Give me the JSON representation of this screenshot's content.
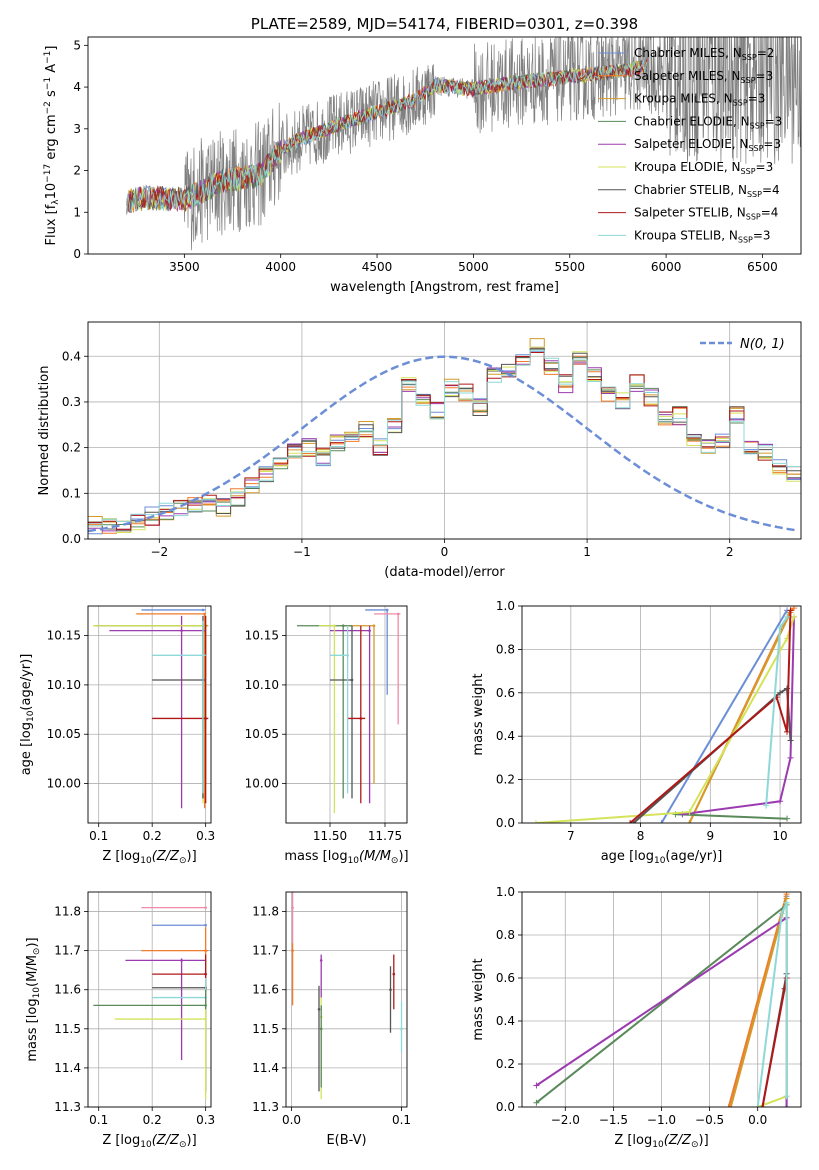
{
  "colors": {
    "chabrier_miles": "#6c8ed6",
    "salpeter_miles": "#f07b2a",
    "kroupa_miles": "#d49a2a",
    "chabrier_elodie": "#5a8a5a",
    "salpeter_elodie": "#9b3bb0",
    "kroupa_elodie": "#d4e35a",
    "chabrier_stelib": "#555555",
    "salpeter_stelib": "#b01818",
    "kroupa_stelib": "#8ed8d8",
    "data": "#808080",
    "normal": "#6c8ed6",
    "pink": "#f08aa8"
  },
  "chart_data": [
    {
      "id": "spectrum",
      "type": "line",
      "title": "PLATE=2589, MJD=54174, FIBERID=0301, z=0.398",
      "xlabel": "wavelength [Angstrom, rest frame]",
      "ylabel": "Flux [f_λ 10^-17 erg cm^-2 s^-1 A^-1]",
      "xlim": [
        3000,
        6700
      ],
      "ylim": [
        0,
        5.2
      ],
      "xticks": [
        "3500",
        "4000",
        "4500",
        "5000",
        "5500",
        "6000",
        "6500"
      ],
      "yticks": [
        "0",
        "1",
        "2",
        "3",
        "4",
        "5"
      ],
      "legend_position": "top-right",
      "legend": [
        "Chabrier MILES, N_SSP=2",
        "Salpeter MILES, N_SSP=3",
        "Kroupa MILES, N_SSP=3",
        "Chabrier ELODIE, N_SSP=3",
        "Salpeter ELODIE, N_SSP=3",
        "Kroupa ELODIE, N_SSP=3",
        "Chabrier STELIB, N_SSP=4",
        "Salpeter STELIB, N_SSP=4",
        "Kroupa STELIB, N_SSP=3"
      ],
      "continuum_x": [
        3200,
        3300,
        3500,
        3700,
        3900,
        4000,
        4100,
        4300,
        4500,
        4700,
        4800,
        5000,
        5200,
        5400,
        5600,
        5800,
        5900
      ],
      "continuum_y": [
        1.25,
        1.35,
        1.3,
        1.75,
        1.9,
        2.5,
        2.75,
        3.1,
        3.4,
        3.7,
        4.05,
        3.95,
        4.1,
        4.2,
        4.3,
        4.4,
        4.5
      ]
    },
    {
      "id": "residuals",
      "type": "bar",
      "xlabel": "(data-model)/error",
      "ylabel": "Normed distribution",
      "xlim": [
        -2.5,
        2.5
      ],
      "ylim": [
        0,
        0.475
      ],
      "xticks": [
        "−2",
        "−1",
        "0",
        "1",
        "2"
      ],
      "yticks": [
        "0.0",
        "0.1",
        "0.2",
        "0.3",
        "0.4"
      ],
      "legend": [
        "N(0, 1)"
      ],
      "legend_position": "top-right",
      "bin_edges_start": -2.5,
      "bin_width": 0.1,
      "histogram": [
        0.03,
        0.025,
        0.03,
        0.04,
        0.05,
        0.06,
        0.065,
        0.075,
        0.08,
        0.07,
        0.09,
        0.12,
        0.14,
        0.17,
        0.19,
        0.2,
        0.18,
        0.21,
        0.22,
        0.24,
        0.2,
        0.25,
        0.34,
        0.3,
        0.28,
        0.33,
        0.32,
        0.29,
        0.36,
        0.37,
        0.4,
        0.42,
        0.38,
        0.34,
        0.4,
        0.36,
        0.32,
        0.3,
        0.34,
        0.31,
        0.26,
        0.27,
        0.22,
        0.2,
        0.22,
        0.27,
        0.2,
        0.19,
        0.16,
        0.14,
        0.12,
        0.1,
        0.11,
        0.09,
        0.08,
        0.07,
        0.07,
        0.06,
        0.05,
        0.05
      ]
    },
    {
      "id": "age_vs_Z",
      "type": "scatter",
      "xlabel": "Z [log10(Z/Z⊙)]",
      "ylabel": "age  [log10(age/yr)]",
      "xlim": [
        0.08,
        0.31
      ],
      "ylim": [
        9.96,
        10.18
      ],
      "xticks": [
        "0.1",
        "0.2",
        "0.3"
      ],
      "yticks": [
        "10.00",
        "10.05",
        "10.10",
        "10.15"
      ],
      "points": [
        {
          "s": "chabrier_miles",
          "x": 0.295,
          "y": 10.176,
          "xe": [
            0.18,
            0.3
          ],
          "ye": [
            10.176,
            10.176
          ]
        },
        {
          "s": "salpeter_miles",
          "x": 0.298,
          "y": 10.172,
          "xe": [
            0.17,
            0.3
          ],
          "ye": [
            9.975,
            10.172
          ]
        },
        {
          "s": "kroupa_miles",
          "x": 0.3,
          "y": 10.16,
          "xe": [
            0.09,
            0.305
          ],
          "ye": [
            10.0,
            10.16
          ]
        },
        {
          "s": "chabrier_elodie",
          "x": 0.295,
          "y": 10.16,
          "xe": [
            0.095,
            0.3
          ],
          "ye": [
            9.985,
            10.16
          ]
        },
        {
          "s": "salpeter_elodie",
          "x": 0.255,
          "y": 10.155,
          "xe": [
            0.12,
            0.3
          ],
          "ye": [
            9.975,
            10.17
          ]
        },
        {
          "s": "kroupa_elodie",
          "x": 0.295,
          "y": 10.16,
          "xe": [
            0.09,
            0.295
          ],
          "ye": [
            9.98,
            10.16
          ]
        },
        {
          "s": "chabrier_stelib",
          "x": 0.295,
          "y": 10.105,
          "xe": [
            0.2,
            0.3
          ],
          "ye": [
            9.985,
            10.17
          ]
        },
        {
          "s": "salpeter_stelib",
          "x": 0.3,
          "y": 10.066,
          "xe": [
            0.2,
            0.305
          ],
          "ye": [
            9.98,
            10.17
          ]
        },
        {
          "s": "kroupa_stelib",
          "x": 0.295,
          "y": 10.13,
          "xe": [
            0.2,
            0.3
          ],
          "ye": [
            9.99,
            10.165
          ]
        }
      ]
    },
    {
      "id": "age_vs_mass",
      "type": "scatter",
      "xlabel": "mass [log10(M/M⊙)]",
      "ylabel": "",
      "xlim": [
        11.3,
        11.85
      ],
      "ylim": [
        9.96,
        10.18
      ],
      "xticks": [
        "11.50",
        "11.75"
      ],
      "yticks": [
        "10.00",
        "10.05",
        "10.10",
        "10.15"
      ],
      "points": [
        {
          "s": "chabrier_miles",
          "x": 11.76,
          "y": 10.176,
          "xe": [
            11.66,
            11.76
          ],
          "ye": [
            10.09,
            10.176
          ]
        },
        {
          "s": "pink",
          "x": 11.81,
          "y": 10.172,
          "xe": [
            11.7,
            11.82
          ],
          "ye": [
            10.06,
            10.172
          ]
        },
        {
          "s": "kroupa_miles",
          "x": 11.7,
          "y": 10.16,
          "xe": [
            11.55,
            11.7
          ],
          "ye": [
            10.0,
            10.16
          ]
        },
        {
          "s": "chabrier_elodie",
          "x": 11.56,
          "y": 10.16,
          "xe": [
            11.35,
            11.6
          ],
          "ye": [
            9.985,
            10.16
          ]
        },
        {
          "s": "salpeter_elodie",
          "x": 11.68,
          "y": 10.155,
          "xe": [
            11.5,
            11.68
          ],
          "ye": [
            9.98,
            10.16
          ]
        },
        {
          "s": "kroupa_elodie",
          "x": 11.52,
          "y": 10.16,
          "xe": [
            11.45,
            11.52
          ],
          "ye": [
            9.97,
            10.16
          ]
        },
        {
          "s": "chabrier_stelib",
          "x": 11.6,
          "y": 10.105,
          "xe": [
            11.5,
            11.6
          ],
          "ye": [
            9.985,
            10.16
          ]
        },
        {
          "s": "salpeter_stelib",
          "x": 11.64,
          "y": 10.066,
          "xe": [
            11.58,
            11.66
          ],
          "ye": [
            9.98,
            10.16
          ]
        },
        {
          "s": "kroupa_stelib",
          "x": 11.58,
          "y": 10.13,
          "xe": [
            11.5,
            11.58
          ],
          "ye": [
            9.99,
            10.16
          ]
        }
      ]
    },
    {
      "id": "massweight_vs_age",
      "type": "line",
      "xlabel": "age  [log10(age/yr)]",
      "ylabel": "mass weight",
      "xlim": [
        6.3,
        10.3
      ],
      "ylim": [
        0,
        1
      ],
      "xticks": [
        "7",
        "8",
        "9",
        "10"
      ],
      "yticks": [
        "0.0",
        "0.2",
        "0.4",
        "0.6",
        "0.8",
        "1.0"
      ],
      "series": [
        {
          "s": "chabrier_miles",
          "x": [
            8.3,
            10.1
          ],
          "y": [
            0.0,
            0.98
          ]
        },
        {
          "s": "salpeter_miles",
          "x": [
            8.7,
            10.15,
            10.2
          ],
          "y": [
            0.0,
            0.98,
            0.99
          ]
        },
        {
          "s": "kroupa_miles",
          "x": [
            8.7,
            10.15
          ],
          "y": [
            0.0,
            0.97
          ]
        },
        {
          "s": "chabrier_elodie",
          "x": [
            8.5,
            10.1
          ],
          "y": [
            0.04,
            0.02
          ]
        },
        {
          "s": "salpeter_elodie",
          "x": [
            8.6,
            10.0,
            10.15,
            10.2
          ],
          "y": [
            0.04,
            0.1,
            0.3,
            0.95
          ]
        },
        {
          "s": "kroupa_elodie",
          "x": [
            6.5,
            8.7,
            10.1,
            10.2
          ],
          "y": [
            0.0,
            0.05,
            0.85,
            0.95
          ]
        },
        {
          "s": "chabrier_stelib",
          "x": [
            7.9,
            10.0,
            10.1,
            10.15
          ],
          "y": [
            0.0,
            0.6,
            0.62,
            0.38
          ]
        },
        {
          "s": "salpeter_stelib",
          "x": [
            7.85,
            9.95,
            10.1,
            10.15
          ],
          "y": [
            0.0,
            0.58,
            0.42,
            0.98
          ]
        },
        {
          "s": "kroupa_stelib",
          "x": [
            9.8,
            10.0,
            10.1
          ],
          "y": [
            0.08,
            0.9,
            0.95
          ]
        }
      ]
    },
    {
      "id": "mass_vs_Z",
      "type": "scatter",
      "xlabel": "Z [log10(Z/Z⊙)]",
      "ylabel": "mass [log10(M/M⊙)]",
      "xlim": [
        0.08,
        0.31
      ],
      "ylim": [
        11.3,
        11.85
      ],
      "xticks": [
        "0.1",
        "0.2",
        "0.3"
      ],
      "yticks": [
        "11.3",
        "11.4",
        "11.5",
        "11.6",
        "11.7",
        "11.8"
      ],
      "points": [
        {
          "s": "pink",
          "x": 0.3,
          "y": 11.81,
          "xe": [
            0.18,
            0.3
          ],
          "ye": [
            11.81,
            11.81
          ]
        },
        {
          "s": "chabrier_miles",
          "x": 0.3,
          "y": 11.765,
          "xe": [
            0.2,
            0.3
          ],
          "ye": [
            11.765,
            11.765
          ]
        },
        {
          "s": "salpeter_miles",
          "x": 0.3,
          "y": 11.7,
          "xe": [
            0.18,
            0.305
          ],
          "ye": [
            11.56,
            11.76
          ]
        },
        {
          "s": "salpeter_elodie",
          "x": 0.255,
          "y": 11.675,
          "xe": [
            0.15,
            0.3
          ],
          "ye": [
            11.42,
            11.68
          ]
        },
        {
          "s": "salpeter_stelib",
          "x": 0.3,
          "y": 11.64,
          "xe": [
            0.2,
            0.3
          ],
          "ye": [
            11.56,
            11.69
          ]
        },
        {
          "s": "chabrier_stelib",
          "x": 0.3,
          "y": 11.605,
          "xe": [
            0.2,
            0.3
          ],
          "ye": [
            11.34,
            11.61
          ]
        },
        {
          "s": "kroupa_stelib",
          "x": 0.3,
          "y": 11.58,
          "xe": [
            0.2,
            0.3
          ],
          "ye": [
            11.5,
            11.63
          ]
        },
        {
          "s": "chabrier_elodie",
          "x": 0.3,
          "y": 11.56,
          "xe": [
            0.09,
            0.3
          ],
          "ye": [
            11.34,
            11.6
          ]
        },
        {
          "s": "kroupa_elodie",
          "x": 0.3,
          "y": 11.525,
          "xe": [
            0.13,
            0.3
          ],
          "ye": [
            11.32,
            11.55
          ]
        }
      ]
    },
    {
      "id": "mass_vs_ebv",
      "type": "scatter",
      "xlabel": "E(B-V)",
      "ylabel": "",
      "xlim": [
        -0.005,
        0.105
      ],
      "ylim": [
        11.3,
        11.85
      ],
      "xticks": [
        "0.0",
        "0.1"
      ],
      "yticks": [
        "11.3",
        "11.4",
        "11.5",
        "11.6",
        "11.7",
        "11.8"
      ],
      "points": [
        {
          "s": "pink",
          "x": 0.001,
          "y": 11.81,
          "ye": [
            11.72,
            11.85
          ]
        },
        {
          "s": "salpeter_miles",
          "x": 0.001,
          "y": 11.7,
          "ye": [
            11.56,
            11.72
          ]
        },
        {
          "s": "salpeter_elodie",
          "x": 0.027,
          "y": 11.675,
          "ye": [
            11.58,
            11.69
          ]
        },
        {
          "s": "chabrier_stelib",
          "x": 0.025,
          "y": 11.55,
          "ye": [
            11.34,
            11.61
          ]
        },
        {
          "s": "kroupa_elodie",
          "x": 0.027,
          "y": 11.53,
          "ye": [
            11.32,
            11.58
          ]
        },
        {
          "s": "chabrier_elodie",
          "x": 0.027,
          "y": 11.5,
          "ye": [
            11.35,
            11.56
          ]
        },
        {
          "s": "chabrier_stelib",
          "x": 0.09,
          "y": 11.6,
          "ye": [
            11.49,
            11.66
          ]
        },
        {
          "s": "salpeter_stelib",
          "x": 0.093,
          "y": 11.64,
          "ye": [
            11.55,
            11.69
          ]
        },
        {
          "s": "kroupa_stelib",
          "x": 0.1,
          "y": 11.5,
          "ye": [
            11.44,
            11.57
          ]
        }
      ]
    },
    {
      "id": "massweight_vs_Z",
      "type": "line",
      "xlabel": "Z [log10(Z/Z⊙)]",
      "ylabel": "mass weight",
      "xlim": [
        -2.45,
        0.45
      ],
      "ylim": [
        0,
        1
      ],
      "xticks": [
        "−2.0",
        "−1.5",
        "−1.0",
        "−0.5",
        "0.0"
      ],
      "yticks": [
        "0.0",
        "0.2",
        "0.4",
        "0.6",
        "0.8",
        "1.0"
      ],
      "series": [
        {
          "s": "chabrier_miles",
          "x": [
            -0.3,
            0.3
          ],
          "y": [
            0.0,
            0.98
          ]
        },
        {
          "s": "salpeter_miles",
          "x": [
            -0.3,
            0.3
          ],
          "y": [
            0.0,
            0.99
          ]
        },
        {
          "s": "kroupa_miles",
          "x": [
            -0.28,
            0.3
          ],
          "y": [
            0.0,
            0.97
          ]
        },
        {
          "s": "chabrier_elodie",
          "x": [
            -2.3,
            0.3,
            0.3
          ],
          "y": [
            0.02,
            0.94,
            0.0
          ]
        },
        {
          "s": "salpeter_elodie",
          "x": [
            -2.3,
            0.3,
            0.3
          ],
          "y": [
            0.1,
            0.88,
            0.0
          ]
        },
        {
          "s": "kroupa_elodie",
          "x": [
            0.0,
            0.3,
            0.3
          ],
          "y": [
            0.0,
            0.05,
            0.95
          ]
        },
        {
          "s": "chabrier_stelib",
          "x": [
            0.05,
            0.3
          ],
          "y": [
            0.0,
            0.62
          ]
        },
        {
          "s": "salpeter_stelib",
          "x": [
            0.05,
            0.28,
            0.3
          ],
          "y": [
            0.0,
            0.55,
            0.6
          ]
        },
        {
          "s": "kroupa_stelib",
          "x": [
            0.0,
            0.25,
            0.3,
            0.3
          ],
          "y": [
            0.0,
            0.9,
            0.95,
            0.05
          ]
        }
      ]
    }
  ]
}
